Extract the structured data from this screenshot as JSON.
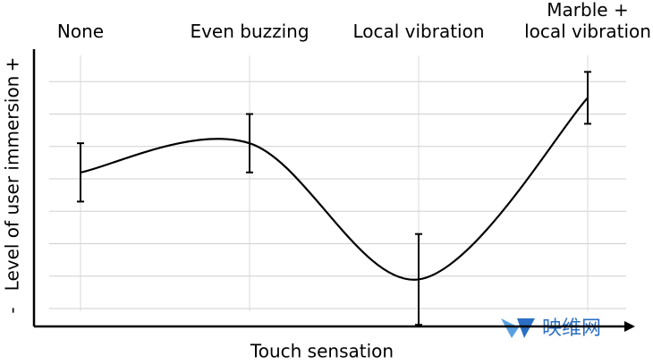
{
  "chart_data": {
    "type": "line",
    "x_label": "Touch sensation",
    "y_label": "Level of user immersion",
    "y_min_label": "-",
    "y_max_label": "+",
    "categories": [
      "None",
      "Even buzzing",
      "Local vibration",
      "Marble +\nlocal vibration"
    ],
    "series": [
      {
        "color": "#000000",
        "values": [
          5.2,
          6.1,
          1.9,
          7.5
        ],
        "errors": [
          0.9,
          0.9,
          1.4,
          0.8
        ]
      }
    ],
    "ylim": [
      0.45,
      9
    ],
    "ygrid": [
      1,
      2,
      3,
      4,
      5,
      6,
      7,
      8
    ],
    "grid": true,
    "watermark": "映维网"
  }
}
